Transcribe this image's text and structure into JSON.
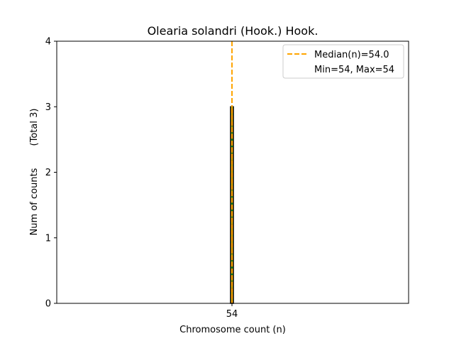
{
  "chart_data": {
    "type": "bar",
    "title": "Olearia solandri (Hook.) Hook.",
    "xlabel": "Chromosome count (n)",
    "ylabel": "Num of counts",
    "ylabel_secondary": "(Total 3)",
    "categories": [
      "54"
    ],
    "x": [
      54
    ],
    "values": [
      3
    ],
    "ylim": [
      0,
      4
    ],
    "yticks": [
      "0",
      "1",
      "2",
      "3",
      "4"
    ],
    "xticks": [
      "54"
    ],
    "median": 54.0,
    "legend": {
      "position": "top-right",
      "entries": [
        "Median(n)=54.0",
        "Min=54, Max=54"
      ]
    },
    "colors": {
      "bar_edge": "#000000",
      "bar_inner": "#1a7a1a",
      "median": "#ffa500"
    },
    "grid": false
  }
}
